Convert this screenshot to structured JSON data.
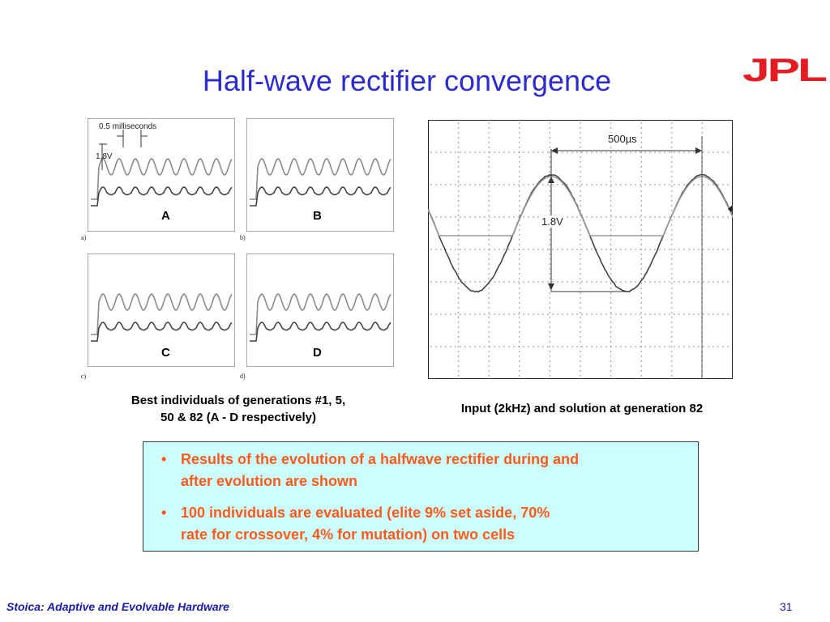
{
  "slide": {
    "title": "Half-wave rectifier convergence",
    "logo_text": "JPL",
    "colors": {
      "title": "#2b2bd0",
      "logo": "#e31b23",
      "bullet": "#ff5a1a",
      "box_bg": "#ccffff",
      "footer": "#1a1aa8"
    }
  },
  "scopes": {
    "panels": [
      {
        "label": "A",
        "tag": "a)"
      },
      {
        "label": "B",
        "tag": "b)"
      },
      {
        "label": "C",
        "tag": "c)"
      },
      {
        "label": "D",
        "tag": "d)"
      }
    ],
    "panel_a_annotations": {
      "time": "0.5 milliseconds",
      "voltage": "1.8V"
    },
    "corner_mark": "a)",
    "big_scope": {
      "time": "500µs",
      "voltage": "1.8V"
    }
  },
  "captions": {
    "left": [
      "Best individuals of generations #1, 5,",
      "50 & 82 (A - D respectively)"
    ],
    "right": "Input (2kHz) and solution at generation 82"
  },
  "bullets": [
    {
      "line1": "Results of the evolution of a halfwave rectifier during and",
      "line2": "after evolution are shown"
    },
    {
      "line1": "100 individuals are evaluated (elite 9% set aside, 70%",
      "line2": "rate for crossover, 4% for mutation) on two cells"
    }
  ],
  "footer": {
    "author": "Stoica: Adaptive and Evolvable Hardware",
    "page": "31"
  }
}
